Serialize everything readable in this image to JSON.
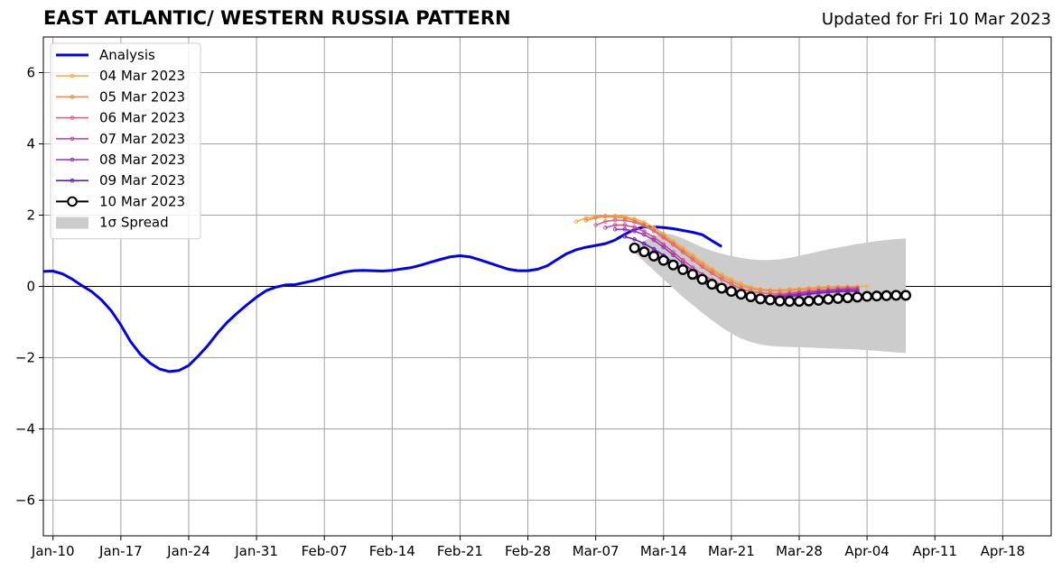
{
  "chart_data": {
    "type": "line",
    "title": "EAST ATLANTIC/ WESTERN RUSSIA PATTERN",
    "subtitle": "Updated for Fri 10 Mar 2023",
    "xlabel": "",
    "ylabel": "",
    "x_range": [
      "2023-01-09",
      "2023-04-23"
    ],
    "ylim": [
      -7,
      7
    ],
    "yticks": [
      -6,
      -4,
      -2,
      0,
      2,
      4,
      6
    ],
    "ytick_labels": [
      "−6",
      "−4",
      "−2",
      "0",
      "2",
      "4",
      "6"
    ],
    "xticks": [
      "2023-01-10",
      "2023-01-17",
      "2023-01-24",
      "2023-01-31",
      "2023-02-07",
      "2023-02-14",
      "2023-02-21",
      "2023-02-28",
      "2023-03-07",
      "2023-03-14",
      "2023-03-21",
      "2023-03-28",
      "2023-04-04",
      "2023-04-11",
      "2023-04-18"
    ],
    "xtick_labels": [
      "Jan-10",
      "Jan-17",
      "Jan-24",
      "Jan-31",
      "Feb-07",
      "Feb-14",
      "Feb-21",
      "Feb-28",
      "Mar-07",
      "Mar-14",
      "Mar-21",
      "Mar-28",
      "Apr-04",
      "Apr-11",
      "Apr-18"
    ],
    "grid": true,
    "zero_line": true,
    "legend_position": "top-left",
    "series": [
      {
        "name": "Analysis",
        "color": "#0000ee",
        "marker": "none",
        "start": "2023-01-09",
        "values": [
          0.42,
          0.43,
          0.35,
          0.2,
          0.02,
          -0.15,
          -0.38,
          -0.68,
          -1.08,
          -1.55,
          -1.9,
          -2.15,
          -2.32,
          -2.39,
          -2.36,
          -2.22,
          -1.95,
          -1.65,
          -1.3,
          -1.0,
          -0.75,
          -0.52,
          -0.3,
          -0.12,
          -0.02,
          0.04,
          0.05,
          0.11,
          0.17,
          0.25,
          0.33,
          0.4,
          0.44,
          0.45,
          0.44,
          0.43,
          0.45,
          0.49,
          0.53,
          0.6,
          0.68,
          0.76,
          0.83,
          0.86,
          0.83,
          0.75,
          0.66,
          0.57,
          0.48,
          0.44,
          0.44,
          0.48,
          0.58,
          0.75,
          0.92,
          1.03,
          1.1,
          1.15,
          1.2,
          1.3,
          1.46,
          1.6,
          1.67,
          1.67,
          1.65,
          1.62,
          1.57,
          1.52,
          1.45,
          1.28,
          1.12
        ]
      },
      {
        "name": "04 Mar 2023",
        "color": "#f5b041",
        "marker": "dot",
        "start": "2023-03-05",
        "values": [
          1.82,
          1.92,
          1.96,
          1.98,
          1.98,
          1.96,
          1.9,
          1.8,
          1.66,
          1.48,
          1.28,
          1.08,
          0.88,
          0.68,
          0.5,
          0.34,
          0.2,
          0.08,
          -0.02,
          -0.08,
          -0.1,
          -0.1,
          -0.08,
          -0.06,
          -0.04,
          -0.02,
          -0.01,
          -0.01,
          0.0,
          0.0,
          0.0
        ]
      },
      {
        "name": "05 Mar 2023",
        "color": "#ef8a4c",
        "marker": "dot",
        "start": "2023-03-06",
        "values": [
          1.85,
          1.93,
          1.96,
          1.95,
          1.92,
          1.85,
          1.74,
          1.6,
          1.42,
          1.22,
          1.02,
          0.82,
          0.62,
          0.44,
          0.28,
          0.14,
          0.02,
          -0.06,
          -0.1,
          -0.12,
          -0.12,
          -0.11,
          -0.09,
          -0.07,
          -0.05,
          -0.03,
          -0.02,
          -0.02,
          -0.03
        ]
      },
      {
        "name": "06 Mar 2023",
        "color": "#e0627a",
        "marker": "dot",
        "start": "2023-03-07",
        "values": [
          1.72,
          1.82,
          1.86,
          1.85,
          1.8,
          1.7,
          1.55,
          1.37,
          1.17,
          0.96,
          0.75,
          0.55,
          0.37,
          0.2,
          0.06,
          -0.06,
          -0.14,
          -0.18,
          -0.2,
          -0.2,
          -0.18,
          -0.16,
          -0.13,
          -0.11,
          -0.09,
          -0.07,
          -0.05,
          -0.04
        ]
      },
      {
        "name": "07 Mar 2023",
        "color": "#c94a9c",
        "marker": "dot",
        "start": "2023-03-08",
        "values": [
          1.65,
          1.72,
          1.72,
          1.66,
          1.54,
          1.38,
          1.18,
          0.96,
          0.74,
          0.53,
          0.34,
          0.17,
          0.03,
          -0.09,
          -0.17,
          -0.23,
          -0.26,
          -0.26,
          -0.24,
          -0.21,
          -0.18,
          -0.15,
          -0.12,
          -0.1,
          -0.08,
          -0.07,
          -0.07
        ]
      },
      {
        "name": "08 Mar 2023",
        "color": "#9b30b8",
        "marker": "dot",
        "start": "2023-03-09",
        "values": [
          1.6,
          1.6,
          1.55,
          1.45,
          1.3,
          1.1,
          0.88,
          0.65,
          0.44,
          0.25,
          0.09,
          -0.05,
          -0.15,
          -0.22,
          -0.27,
          -0.29,
          -0.29,
          -0.27,
          -0.24,
          -0.21,
          -0.18,
          -0.15,
          -0.13,
          -0.11,
          -0.1,
          -0.1
        ]
      },
      {
        "name": "09 Mar 2023",
        "color": "#6a1fb2",
        "marker": "dot",
        "start": "2023-03-10",
        "values": [
          1.4,
          1.32,
          1.2,
          1.05,
          0.87,
          0.67,
          0.47,
          0.28,
          0.12,
          -0.02,
          -0.13,
          -0.21,
          -0.27,
          -0.31,
          -0.33,
          -0.33,
          -0.31,
          -0.28,
          -0.25,
          -0.22,
          -0.19,
          -0.17,
          -0.15,
          -0.14,
          -0.14
        ]
      },
      {
        "name": "10 Mar 2023",
        "color": "#000000",
        "marker": "open-circle",
        "start": "2023-03-11",
        "values": [
          1.08,
          0.97,
          0.85,
          0.73,
          0.6,
          0.47,
          0.34,
          0.2,
          0.06,
          -0.05,
          -0.14,
          -0.22,
          -0.29,
          -0.35,
          -0.38,
          -0.41,
          -0.42,
          -0.42,
          -0.41,
          -0.39,
          -0.36,
          -0.34,
          -0.32,
          -0.3,
          -0.28,
          -0.27,
          -0.26,
          -0.25,
          -0.25
        ]
      }
    ],
    "spread": {
      "name": "1σ Spread",
      "color": "#cccccc",
      "start": "2023-03-11",
      "upper": [
        1.15,
        1.28,
        1.4,
        1.5,
        1.45,
        1.35,
        1.22,
        1.1,
        1.0,
        0.92,
        0.85,
        0.8,
        0.76,
        0.74,
        0.74,
        0.76,
        0.8,
        0.86,
        0.92,
        0.98,
        1.04,
        1.09,
        1.14,
        1.19,
        1.23,
        1.27,
        1.3,
        1.33,
        1.35
      ],
      "lower": [
        0.95,
        0.7,
        0.45,
        0.2,
        -0.05,
        -0.3,
        -0.52,
        -0.74,
        -0.95,
        -1.15,
        -1.32,
        -1.46,
        -1.56,
        -1.63,
        -1.67,
        -1.69,
        -1.7,
        -1.71,
        -1.72,
        -1.73,
        -1.74,
        -1.75,
        -1.76,
        -1.77,
        -1.79,
        -1.81,
        -1.83,
        -1.85,
        -1.87
      ]
    }
  }
}
